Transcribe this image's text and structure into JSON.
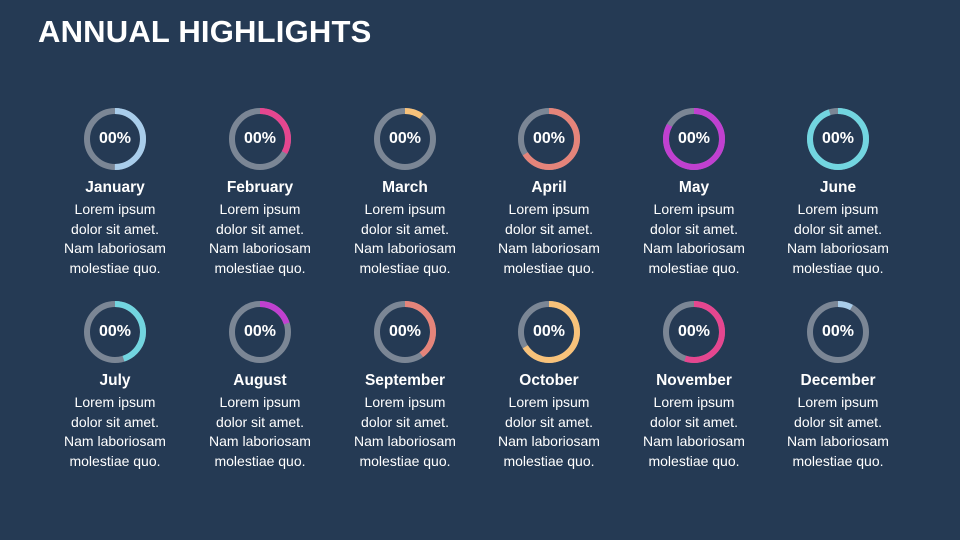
{
  "title": "ANNUAL HIGHLIGHTS",
  "colors": {
    "background": "#253a54",
    "track": "#7b8695"
  },
  "months": [
    {
      "name": "January",
      "value_label": "00%",
      "desc": [
        "Lorem ipsum",
        "dolor sit amet.",
        "Nam laboriosam",
        "molestiae quo."
      ],
      "color": "#a9cdeb",
      "fill": 0.5
    },
    {
      "name": "February",
      "value_label": "00%",
      "desc": [
        "Lorem ipsum",
        "dolor sit amet.",
        "Nam laboriosam",
        "molestiae quo."
      ],
      "color": "#e5468f",
      "fill": 0.33
    },
    {
      "name": "March",
      "value_label": "00%",
      "desc": [
        "Lorem ipsum",
        "dolor sit amet.",
        "Nam laboriosam",
        "molestiae quo."
      ],
      "color": "#f8c27a",
      "fill": 0.1
    },
    {
      "name": "April",
      "value_label": "00%",
      "desc": [
        "Lorem ipsum",
        "dolor sit amet.",
        "Nam laboriosam",
        "molestiae quo."
      ],
      "color": "#e5847a",
      "fill": 0.66
    },
    {
      "name": "May",
      "value_label": "00%",
      "desc": [
        "Lorem ipsum",
        "dolor sit amet.",
        "Nam laboriosam",
        "molestiae quo."
      ],
      "color": "#c040d0",
      "fill": 0.83
    },
    {
      "name": "June",
      "value_label": "00%",
      "desc": [
        "Lorem ipsum",
        "dolor sit amet.",
        "Nam laboriosam",
        "molestiae quo."
      ],
      "color": "#72d5e0",
      "fill": 0.95
    },
    {
      "name": "July",
      "value_label": "00%",
      "desc": [
        "Lorem ipsum",
        "dolor sit amet.",
        "Nam laboriosam",
        "molestiae quo."
      ],
      "color": "#72d5e0",
      "fill": 0.45
    },
    {
      "name": "August",
      "value_label": "00%",
      "desc": [
        "Lorem ipsum",
        "dolor sit amet.",
        "Nam laboriosam",
        "molestiae quo."
      ],
      "color": "#c040d0",
      "fill": 0.2
    },
    {
      "name": "September",
      "value_label": "00%",
      "desc": [
        "Lorem ipsum",
        "dolor sit amet.",
        "Nam laboriosam",
        "molestiae quo."
      ],
      "color": "#e5847a",
      "fill": 0.4
    },
    {
      "name": "October",
      "value_label": "00%",
      "desc": [
        "Lorem ipsum",
        "dolor sit amet.",
        "Nam laboriosam",
        "molestiae quo."
      ],
      "color": "#f8c27a",
      "fill": 0.66
    },
    {
      "name": "November",
      "value_label": "00%",
      "desc": [
        "Lorem ipsum",
        "dolor sit amet.",
        "Nam laboriosam",
        "molestiae quo."
      ],
      "color": "#e5468f",
      "fill": 0.55
    },
    {
      "name": "December",
      "value_label": "00%",
      "desc": [
        "Lorem ipsum",
        "dolor sit amet.",
        "Nam laboriosam",
        "molestiae quo."
      ],
      "color": "#a9cdeb",
      "fill": 0.08
    }
  ]
}
